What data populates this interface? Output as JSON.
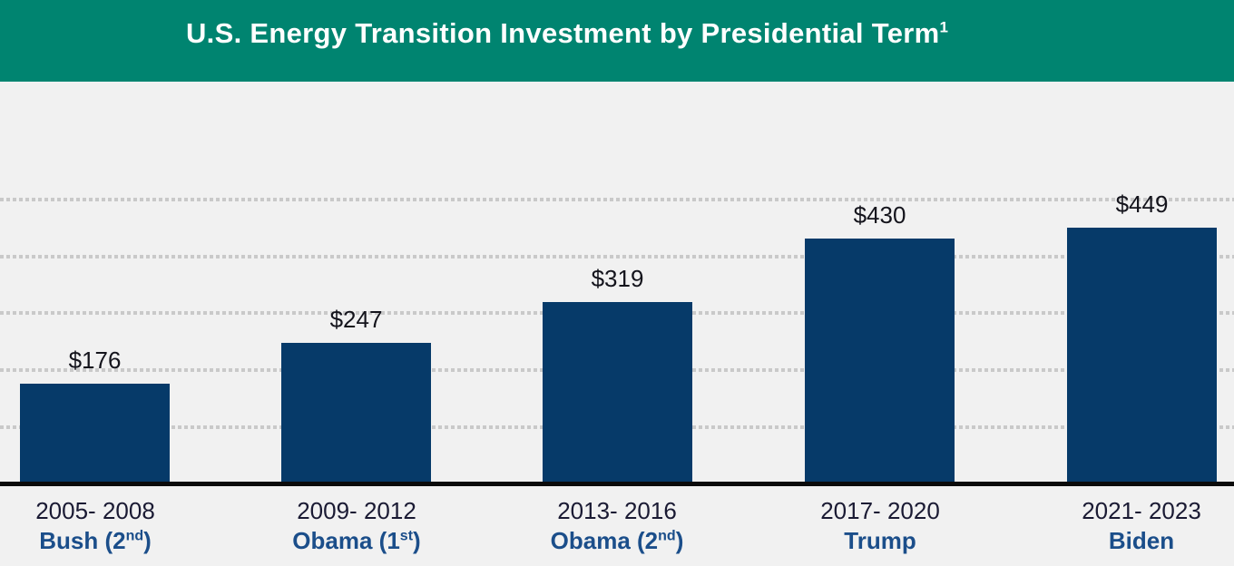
{
  "header": {
    "title": "U.S. Energy Transition Investment by Presidential Term",
    "title_superscript": "1"
  },
  "colors": {
    "banner": "#008470",
    "background": "#F1F1F1",
    "bar": "#063A69",
    "axis": "#0B0B0B",
    "gridline": "#C9C9C9",
    "title_text": "#FFFFFF",
    "value_label": "#14141C",
    "year_label": "#1A1A33",
    "president_label": "#1B4E8A"
  },
  "chart_data": {
    "type": "bar",
    "title": "U.S. Energy Transition Investment by Presidential Term",
    "title_footnote_marker": "1",
    "categories": [
      "2005- 2008",
      "2009- 2012",
      "2013- 2016",
      "2017- 2020",
      "2021- 2023"
    ],
    "values": [
      176,
      247,
      319,
      430,
      449
    ],
    "value_prefix": "$",
    "xlabel": "",
    "ylabel": "",
    "ylim": [
      0,
      500
    ],
    "gridlines": {
      "interval": 100,
      "values": [
        100,
        200,
        300,
        400,
        500
      ],
      "style": "dotted",
      "tick_labels_shown": false
    },
    "legend": "none",
    "bars": [
      {
        "term": "2005- 2008",
        "president": "Bush (2nd)",
        "president_prefix": "Bush (2",
        "president_sup": "nd",
        "president_suffix": ")",
        "value": 176,
        "value_label": "$176"
      },
      {
        "term": "2009- 2012",
        "president": "Obama (1st)",
        "president_prefix": "Obama (1",
        "president_sup": "st",
        "president_suffix": ")",
        "value": 247,
        "value_label": "$247"
      },
      {
        "term": "2013- 2016",
        "president": "Obama (2nd)",
        "president_prefix": "Obama (2",
        "president_sup": "nd",
        "president_suffix": ")",
        "value": 319,
        "value_label": "$319"
      },
      {
        "term": "2017- 2020",
        "president": "Trump",
        "president_prefix": "Trump",
        "president_sup": "",
        "president_suffix": "",
        "value": 430,
        "value_label": "$430"
      },
      {
        "term": "2021- 2023",
        "president": "Biden",
        "president_prefix": "Biden",
        "president_sup": "",
        "president_suffix": "",
        "value": 449,
        "value_label": "$449"
      }
    ]
  }
}
